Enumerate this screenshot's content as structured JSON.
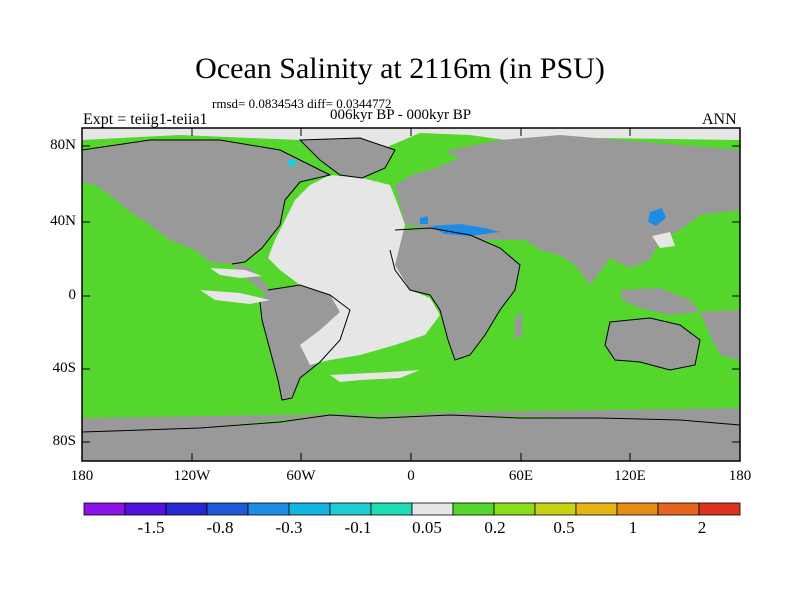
{
  "title": "Ocean Salinity at 2116m (in PSU)",
  "stats_line": "rmsd= 0.0834543 diff= 0.0344772",
  "period": "006kyr BP - 000kyr BP",
  "experiment": "Expt = teiig1-teiia1",
  "season": "ANN",
  "map": {
    "lat_ticks": [
      "80N",
      "40N",
      "0",
      "40S",
      "80S"
    ],
    "lon_ticks": [
      "180",
      "120W",
      "60W",
      "0",
      "60E",
      "120E",
      "180"
    ],
    "land_color": "#999999",
    "no_data_color": "#e6e6e6",
    "dominant_ocean_color": "#55d62d"
  },
  "colorbar": {
    "colors": [
      "#8c14e6",
      "#5014dc",
      "#2828d2",
      "#1e5ad7",
      "#1e8ce6",
      "#14b4e1",
      "#1ecdd2",
      "#1edcb4",
      "#e6e6e6",
      "#55d62d",
      "#8cdc1e",
      "#c8d214",
      "#e6b414",
      "#e68c14",
      "#e6641e",
      "#dc321e"
    ],
    "labels": [
      "-1.5",
      "-0.8",
      "-0.3",
      "-0.1",
      "0.05",
      "0.2",
      "0.5",
      "1",
      "2"
    ]
  }
}
